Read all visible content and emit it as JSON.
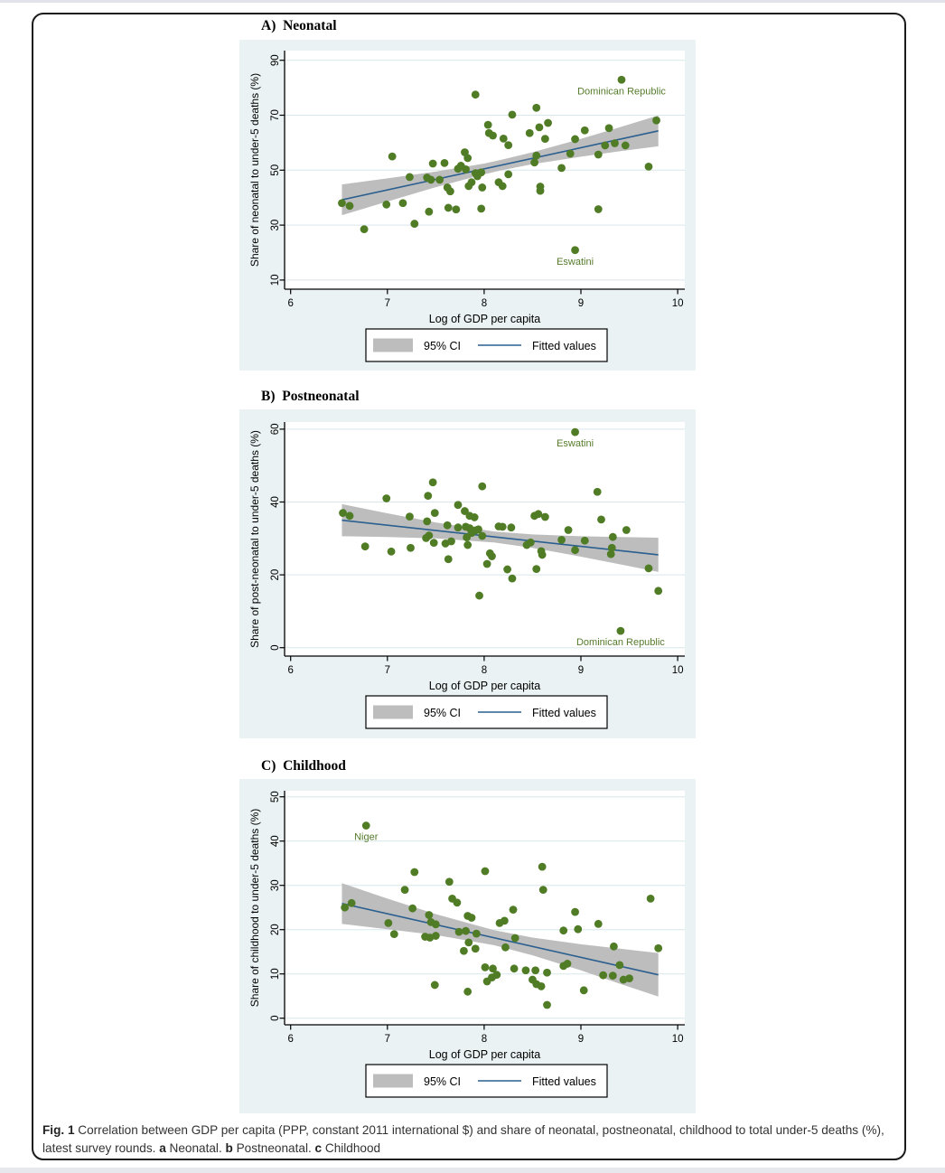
{
  "page": {
    "caption_runs": [
      {
        "text": "Fig. 1 ",
        "bold": true
      },
      {
        "text": "Correlation between GDP per capita (PPP, constant 2011 international $) and share of neonatal, postneonatal, childhood to total under-5 deaths (%), latest survey rounds. ",
        "bold": false
      },
      {
        "text": "a",
        "bold": true
      },
      {
        "text": " Neonatal. ",
        "bold": false
      },
      {
        "text": "b",
        "bold": true
      },
      {
        "text": " Postneonatal. ",
        "bold": false
      },
      {
        "text": "c",
        "bold": true
      },
      {
        "text": " Childhood",
        "bold": false
      }
    ]
  },
  "colors": {
    "panel_bg": "#eaf2f3",
    "plot_bg": "#ffffff",
    "grid": "#d9e7ec",
    "dot": "#507c26",
    "fit_line": "#2a5f8f",
    "ci_fill": "#bdbdbd",
    "axis": "#000000",
    "annotation": "#557b2b",
    "legend_border": "#000000"
  },
  "chart_data": [
    {
      "type": "scatter",
      "panel_label": "A)  Neonatal",
      "xlabel": "Log of GDP per capita",
      "ylabel": "Share of neonatal to under-5 deaths (%)",
      "xlim": [
        6,
        10
      ],
      "xticks": [
        6,
        7,
        8,
        9,
        10
      ],
      "yticks": [
        10,
        30,
        50,
        70,
        90
      ],
      "grid": "horizontal",
      "legend_position": "bottom-center",
      "legend": [
        {
          "swatch": "band",
          "label": "95% CI"
        },
        {
          "swatch": "line",
          "label": "Fitted values"
        }
      ],
      "points": [
        [
          6.53,
          38
        ],
        [
          6.61,
          37
        ],
        [
          6.76,
          28.5
        ],
        [
          6.99,
          37.5
        ],
        [
          7.05,
          55
        ],
        [
          7.16,
          38
        ],
        [
          7.23,
          47.5
        ],
        [
          7.28,
          30.5
        ],
        [
          7.41,
          47.3
        ],
        [
          7.43,
          34.9
        ],
        [
          7.45,
          46.5
        ],
        [
          7.47,
          52.4
        ],
        [
          7.54,
          46.5
        ],
        [
          7.59,
          52.6
        ],
        [
          7.62,
          43.7
        ],
        [
          7.63,
          36.3
        ],
        [
          7.65,
          42.3
        ],
        [
          7.71,
          35.7
        ],
        [
          7.73,
          50.5
        ],
        [
          7.76,
          51.6
        ],
        [
          7.8,
          56.5
        ],
        [
          7.81,
          50.3
        ],
        [
          7.83,
          54.4
        ],
        [
          7.84,
          44.2
        ],
        [
          7.87,
          45.6
        ],
        [
          7.91,
          48.9
        ],
        [
          7.91,
          77.5
        ],
        [
          7.93,
          47.8
        ],
        [
          7.97,
          49.2
        ],
        [
          7.97,
          36
        ],
        [
          7.98,
          43.7
        ],
        [
          8.04,
          66.5
        ],
        [
          8.05,
          63.5
        ],
        [
          8.09,
          62.6
        ],
        [
          8.15,
          45.6
        ],
        [
          8.19,
          44.2
        ],
        [
          8.2,
          61.5
        ],
        [
          8.25,
          59.1
        ],
        [
          8.25,
          48.5
        ],
        [
          8.29,
          70.2
        ],
        [
          8.47,
          63.5
        ],
        [
          8.52,
          52.8
        ],
        [
          8.54,
          55.3
        ],
        [
          8.54,
          72.7
        ],
        [
          8.57,
          65.6
        ],
        [
          8.58,
          44
        ],
        [
          8.58,
          42.5
        ],
        [
          8.63,
          61.4
        ],
        [
          8.66,
          67.2
        ],
        [
          8.8,
          50.8
        ],
        [
          8.89,
          56
        ],
        [
          8.94,
          61.3
        ],
        [
          8.94,
          20.9
        ],
        [
          9.04,
          64.5
        ],
        [
          9.18,
          35.8
        ],
        [
          9.18,
          55.7
        ],
        [
          9.25,
          59
        ],
        [
          9.29,
          65.3
        ],
        [
          9.35,
          59.8
        ],
        [
          9.42,
          82.9
        ],
        [
          9.46,
          59
        ],
        [
          9.7,
          51.3
        ],
        [
          9.78,
          68.1
        ]
      ],
      "fit_line": {
        "x": [
          6.53,
          9.8
        ],
        "y": [
          39.2,
          64.3
        ]
      },
      "ci_band": {
        "x": [
          6.53,
          7.0,
          7.5,
          8.0,
          8.17,
          8.5,
          9.0,
          9.4,
          9.8
        ],
        "lower": [
          33.6,
          38.6,
          43.8,
          48.5,
          49.9,
          52.2,
          54.9,
          56.9,
          58.7
        ],
        "upper": [
          44.8,
          47.0,
          49.5,
          52.4,
          53.7,
          56.5,
          61.4,
          65.6,
          69.9
        ]
      },
      "annotations": [
        {
          "label": "Dominican Republic",
          "x": 9.42,
          "y": 82.9
        },
        {
          "label": "Eswatini",
          "x": 8.94,
          "y": 20.9
        }
      ]
    },
    {
      "type": "scatter",
      "panel_label": "B)  Postneonatal",
      "xlabel": "Log of GDP per capita",
      "ylabel": "Share of post-neonatal to under-5 deaths (%)",
      "xlim": [
        6,
        10
      ],
      "xticks": [
        6,
        7,
        8,
        9,
        10
      ],
      "yticks": [
        0,
        20,
        40,
        60
      ],
      "grid": "horizontal",
      "legend_position": "bottom-center",
      "legend": [
        {
          "swatch": "band",
          "label": "95% CI"
        },
        {
          "swatch": "line",
          "label": "Fitted values"
        }
      ],
      "points": [
        [
          6.54,
          37
        ],
        [
          6.61,
          36.2
        ],
        [
          6.77,
          27.8
        ],
        [
          6.99,
          41
        ],
        [
          7.04,
          26.4
        ],
        [
          7.23,
          36
        ],
        [
          7.24,
          27.4
        ],
        [
          7.4,
          30.1
        ],
        [
          7.41,
          34.7
        ],
        [
          7.42,
          41.7
        ],
        [
          7.43,
          30.8
        ],
        [
          7.47,
          45.4
        ],
        [
          7.48,
          28.8
        ],
        [
          7.49,
          37
        ],
        [
          7.6,
          28.6
        ],
        [
          7.62,
          33.6
        ],
        [
          7.63,
          24.3
        ],
        [
          7.66,
          29.2
        ],
        [
          7.73,
          39.2
        ],
        [
          7.73,
          33
        ],
        [
          7.8,
          37.5
        ],
        [
          7.81,
          33.2
        ],
        [
          7.82,
          30.3
        ],
        [
          7.83,
          28.2
        ],
        [
          7.85,
          32.8
        ],
        [
          7.85,
          36.2
        ],
        [
          7.87,
          31.5
        ],
        [
          7.9,
          35.8
        ],
        [
          7.91,
          32.2
        ],
        [
          7.94,
          32.5
        ],
        [
          7.95,
          14.3
        ],
        [
          7.98,
          44.3
        ],
        [
          7.98,
          30.7
        ],
        [
          8.03,
          23
        ],
        [
          8.06,
          25.9
        ],
        [
          8.08,
          25.1
        ],
        [
          8.15,
          33.3
        ],
        [
          8.19,
          33.2
        ],
        [
          8.24,
          21.5
        ],
        [
          8.28,
          33
        ],
        [
          8.29,
          19
        ],
        [
          8.44,
          28.2
        ],
        [
          8.48,
          28.9
        ],
        [
          8.52,
          36.2
        ],
        [
          8.54,
          21.6
        ],
        [
          8.56,
          36.7
        ],
        [
          8.59,
          26.5
        ],
        [
          8.6,
          25.5
        ],
        [
          8.63,
          35.9
        ],
        [
          8.8,
          29.6
        ],
        [
          8.87,
          32.3
        ],
        [
          8.94,
          59.2
        ],
        [
          8.94,
          26.8
        ],
        [
          9.04,
          29.4
        ],
        [
          9.17,
          42.8
        ],
        [
          9.21,
          35.2
        ],
        [
          9.31,
          25.7
        ],
        [
          9.32,
          27.4
        ],
        [
          9.33,
          30.4
        ],
        [
          9.41,
          4.6
        ],
        [
          9.47,
          32.3
        ],
        [
          9.7,
          21.8
        ],
        [
          9.8,
          15.6
        ]
      ],
      "fit_line": {
        "x": [
          6.53,
          9.8
        ],
        "y": [
          35.0,
          25.5
        ]
      },
      "ci_band": {
        "x": [
          6.53,
          7.0,
          7.5,
          8.1,
          8.5,
          9.0,
          9.4,
          9.8
        ],
        "lower": [
          30.6,
          30.4,
          30.0,
          28.9,
          27.4,
          25.0,
          22.9,
          20.8
        ],
        "upper": [
          39.4,
          36.9,
          34.4,
          31.9,
          31.1,
          30.6,
          30.4,
          30.2
        ]
      },
      "annotations": [
        {
          "label": "Eswatini",
          "x": 8.94,
          "y": 59.2
        },
        {
          "label": "Dominican Republic",
          "x": 9.41,
          "y": 4.6
        }
      ]
    },
    {
      "type": "scatter",
      "panel_label": "C)  Childhood",
      "xlabel": "Log of GDP per capita",
      "ylabel": "Share of childhood to under-5 deaths (%)",
      "xlim": [
        6,
        10
      ],
      "xticks": [
        6,
        7,
        8,
        9,
        10
      ],
      "yticks": [
        0,
        10,
        20,
        30,
        40,
        50
      ],
      "grid": "horizontal",
      "legend_position": "bottom-center",
      "legend": [
        {
          "swatch": "band",
          "label": "95% CI"
        },
        {
          "swatch": "line",
          "label": "Fitted values"
        }
      ],
      "points": [
        [
          6.56,
          25
        ],
        [
          6.63,
          26
        ],
        [
          6.78,
          43.5
        ],
        [
          7.01,
          21.5
        ],
        [
          7.07,
          19
        ],
        [
          7.18,
          29
        ],
        [
          7.26,
          24.8
        ],
        [
          7.28,
          33
        ],
        [
          7.39,
          18.4
        ],
        [
          7.43,
          23.3
        ],
        [
          7.44,
          18.2
        ],
        [
          7.45,
          21.7
        ],
        [
          7.49,
          7.5
        ],
        [
          7.5,
          18.6
        ],
        [
          7.5,
          21.2
        ],
        [
          7.64,
          30.8
        ],
        [
          7.67,
          27
        ],
        [
          7.72,
          26.1
        ],
        [
          7.74,
          19.5
        ],
        [
          7.79,
          15.2
        ],
        [
          7.81,
          19.7
        ],
        [
          7.83,
          23.1
        ],
        [
          7.83,
          6
        ],
        [
          7.84,
          17.1
        ],
        [
          7.87,
          22.7
        ],
        [
          7.91,
          15.7
        ],
        [
          7.92,
          19.1
        ],
        [
          8.01,
          33.2
        ],
        [
          8.01,
          11.5
        ],
        [
          8.03,
          8.3
        ],
        [
          8.08,
          9.2
        ],
        [
          8.09,
          11.2
        ],
        [
          8.13,
          9.8
        ],
        [
          8.16,
          21.5
        ],
        [
          8.21,
          22
        ],
        [
          8.22,
          16
        ],
        [
          8.3,
          24.5
        ],
        [
          8.31,
          11.2
        ],
        [
          8.32,
          18.1
        ],
        [
          8.43,
          10.8
        ],
        [
          8.5,
          8.7
        ],
        [
          8.53,
          10.8
        ],
        [
          8.54,
          7.7
        ],
        [
          8.59,
          7.2
        ],
        [
          8.6,
          34.2
        ],
        [
          8.61,
          29
        ],
        [
          8.65,
          10.3
        ],
        [
          8.65,
          3
        ],
        [
          8.82,
          11.8
        ],
        [
          8.82,
          19.8
        ],
        [
          8.86,
          12.3
        ],
        [
          8.94,
          24
        ],
        [
          8.97,
          20.1
        ],
        [
          9.03,
          6.3
        ],
        [
          9.18,
          21.3
        ],
        [
          9.23,
          9.7
        ],
        [
          9.33,
          9.6
        ],
        [
          9.34,
          16.2
        ],
        [
          9.4,
          12
        ],
        [
          9.44,
          8.7
        ],
        [
          9.5,
          9
        ],
        [
          9.72,
          27
        ],
        [
          9.8,
          15.8
        ]
      ],
      "fit_line": {
        "x": [
          6.53,
          9.8
        ],
        "y": [
          25.9,
          9.8
        ]
      },
      "ci_band": {
        "x": [
          6.53,
          7.0,
          7.5,
          8.1,
          8.5,
          9.0,
          9.4,
          9.8
        ],
        "lower": [
          21.3,
          20.1,
          18.8,
          16.5,
          14.2,
          10.8,
          7.8,
          4.9
        ],
        "upper": [
          30.5,
          27.0,
          23.5,
          19.9,
          18.2,
          16.7,
          15.7,
          14.7
        ]
      },
      "annotations": [
        {
          "label": "Niger",
          "x": 6.78,
          "y": 43.5
        }
      ]
    }
  ]
}
